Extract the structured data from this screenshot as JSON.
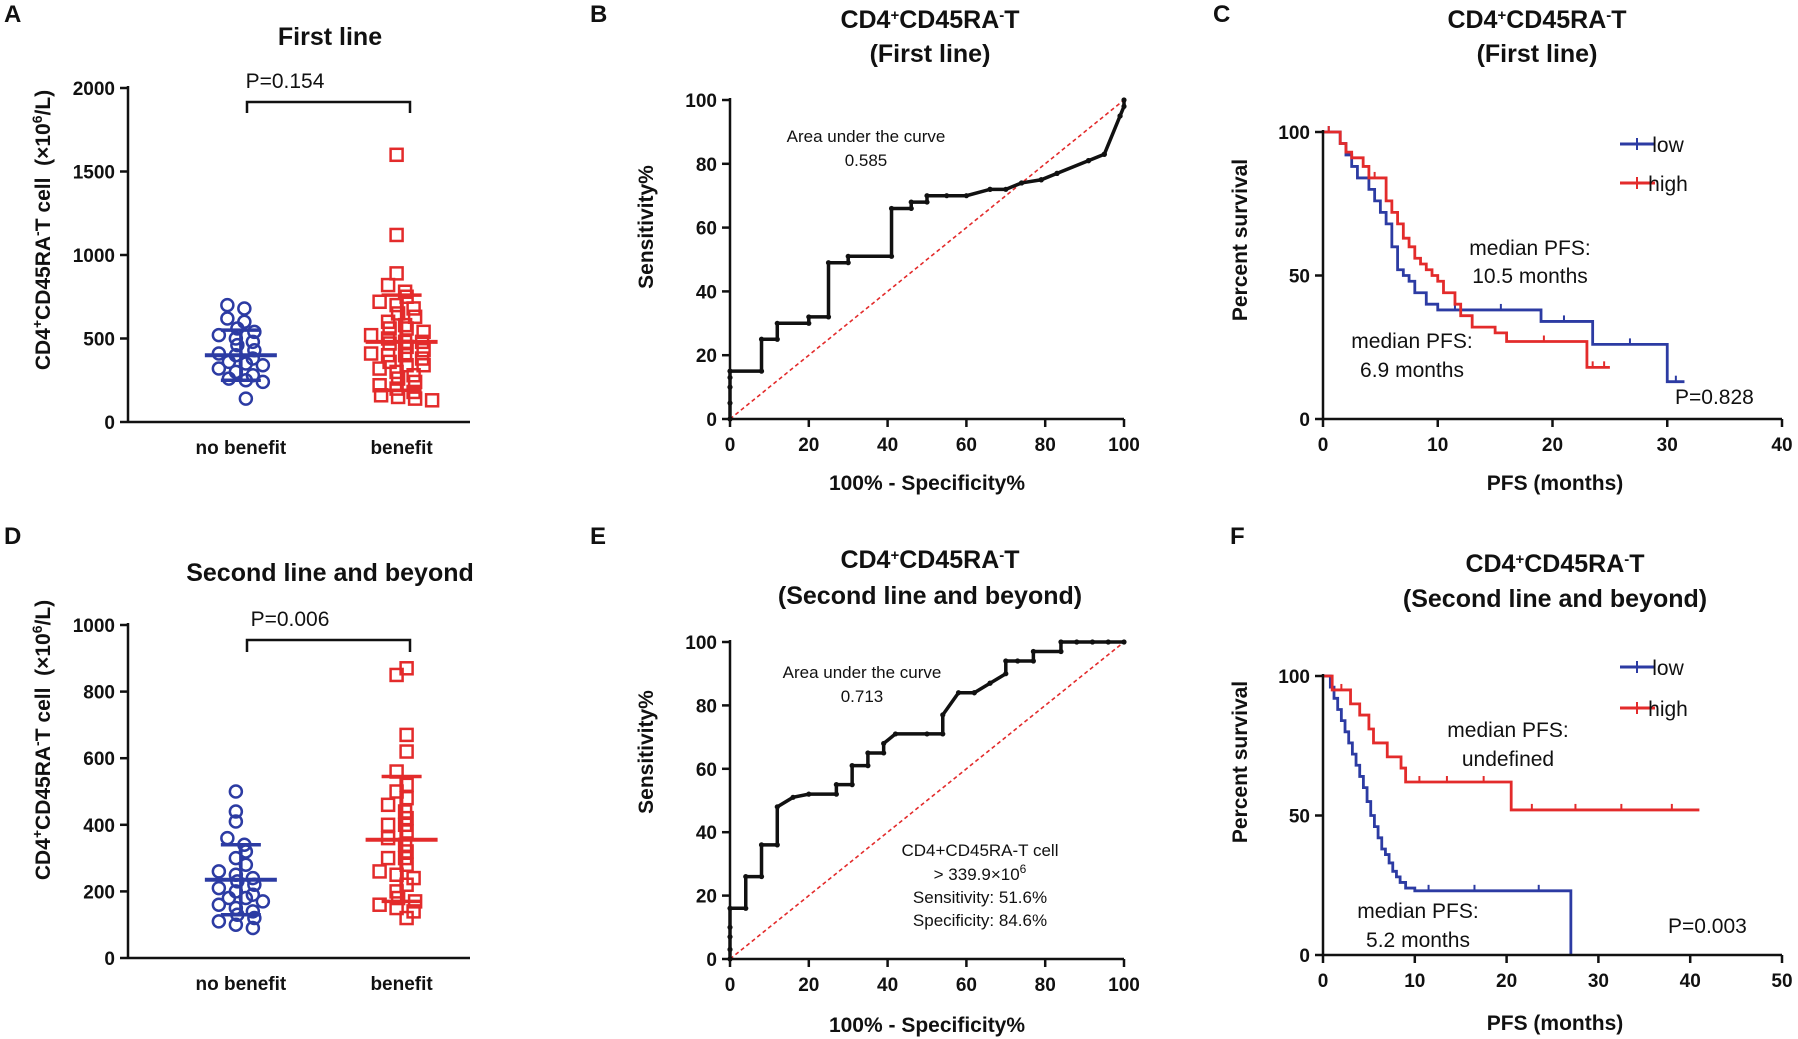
{
  "figure": {
    "panels": [
      {
        "letter": "A"
      },
      {
        "letter": "B"
      },
      {
        "letter": "C"
      },
      {
        "letter": "D"
      },
      {
        "letter": "E"
      },
      {
        "letter": "F"
      }
    ]
  },
  "colors": {
    "blue": "#2c3ba3",
    "red": "#e32b2b",
    "black": "#111111"
  },
  "chart_data": [
    {
      "type": "scatter",
      "panel": "A",
      "title": "First line",
      "ylabel": "CD4+CD45RA-T cell (×10^6/L)",
      "ylabel_parts": {
        "a": "CD4",
        "sup1": "+",
        "b": "CD45RA",
        "sup2": "-",
        "c": "T cell  (×10",
        "sup3": "6",
        "d": "/L)"
      },
      "ylim": [
        0,
        2000
      ],
      "yticks": [
        "0",
        "500",
        "1000",
        "1500",
        "2000"
      ],
      "categories": [
        "no benefit",
        "benefit"
      ],
      "p_value": "P=0.154",
      "groups": [
        {
          "name": "no benefit",
          "color": "#2c3ba3",
          "marker": "circle",
          "mean": 400,
          "sd_upper": 550,
          "sd_lower": 250,
          "points": [
            700,
            680,
            620,
            600,
            560,
            540,
            520,
            500,
            480,
            460,
            430,
            410,
            400,
            380,
            360,
            350,
            340,
            320,
            300,
            280,
            260,
            250,
            240,
            140
          ]
        },
        {
          "name": "benefit",
          "color": "#e32b2b",
          "marker": "square",
          "mean": 480,
          "sd_upper": 760,
          "sd_lower": 190,
          "points": [
            1600,
            1120,
            890,
            820,
            780,
            750,
            720,
            700,
            680,
            650,
            630,
            600,
            580,
            560,
            540,
            520,
            500,
            480,
            470,
            450,
            430,
            410,
            400,
            380,
            360,
            340,
            320,
            300,
            280,
            260,
            240,
            220,
            200,
            180,
            160,
            150,
            140,
            130,
            400,
            480,
            560,
            340
          ]
        }
      ]
    },
    {
      "type": "line",
      "panel": "B",
      "title_parts": {
        "a": "CD4",
        "sup1": "+",
        "b": "CD45RA",
        "sup2": "-",
        "c": "T"
      },
      "title_line2": "(First line)",
      "xlabel": "100% - Specificity%",
      "ylabel": "Sensitivity%",
      "xlim": [
        0,
        100
      ],
      "ylim": [
        0,
        100
      ],
      "xticks": [
        "0",
        "20",
        "40",
        "60",
        "80",
        "100"
      ],
      "yticks": [
        "0",
        "20",
        "40",
        "60",
        "80",
        "100"
      ],
      "auc_label": "Area under the curve",
      "auc_value": "0.585",
      "series": [
        {
          "name": "ROC",
          "color": "#111111",
          "x": [
            0,
            0,
            0,
            0,
            0,
            8,
            8,
            12,
            12,
            20,
            20,
            25,
            25,
            30,
            30,
            41,
            41,
            46,
            46,
            50,
            50,
            55,
            60,
            66,
            66,
            70,
            74,
            74,
            79,
            79,
            83,
            83,
            91,
            91,
            95,
            95,
            99,
            99,
            100,
            100
          ],
          "y": [
            0,
            5,
            10,
            13,
            15,
            15,
            25,
            25,
            30,
            30,
            32,
            32,
            49,
            49,
            51,
            51,
            66,
            66,
            68,
            68,
            70,
            70,
            70,
            72,
            72,
            72,
            74,
            74,
            75,
            75,
            77,
            77,
            81,
            81,
            83,
            83,
            95,
            95,
            98,
            100
          ]
        },
        {
          "name": "reference",
          "color": "#e32b2b",
          "x": [
            0,
            100
          ],
          "y": [
            0,
            100
          ]
        }
      ]
    },
    {
      "type": "line",
      "panel": "C",
      "title_parts": {
        "a": "CD4",
        "sup1": "+",
        "b": "CD45RA",
        "sup2": "-",
        "c": "T"
      },
      "title_line2": "(First line)",
      "xlabel": "PFS (months)",
      "ylabel": "Percent survival",
      "xlim": [
        0,
        40
      ],
      "ylim": [
        0,
        100
      ],
      "xticks": [
        "0",
        "10",
        "20",
        "30",
        "40"
      ],
      "yticks": [
        "0",
        "50",
        "100"
      ],
      "legend": [
        "low",
        "high"
      ],
      "p_value": "P=0.828",
      "annotations": [
        {
          "line1": "median PFS:",
          "line2": "10.5 months"
        },
        {
          "line1": "median PFS:",
          "line2": "6.9 months"
        }
      ],
      "series": [
        {
          "name": "low",
          "color": "#2c3ba3",
          "x": [
            0,
            1,
            1.5,
            2,
            2.5,
            3,
            3.5,
            4,
            4.5,
            5,
            5.5,
            6,
            6.5,
            7,
            7.5,
            8,
            9,
            10,
            13,
            18,
            19,
            23,
            23.5,
            30,
            30,
            31.5
          ],
          "y": [
            100,
            100,
            96,
            92,
            88,
            84,
            84,
            80,
            76,
            72,
            68,
            60,
            52,
            50,
            48,
            44,
            40,
            38,
            38,
            38,
            34,
            34,
            26,
            26,
            13,
            13
          ]
        },
        {
          "name": "high",
          "color": "#e32b2b",
          "x": [
            0,
            1,
            1.5,
            2,
            2.5,
            3.5,
            4,
            5,
            5.5,
            6,
            6.5,
            7,
            7.5,
            8,
            8.5,
            9,
            9.5,
            10,
            10.5,
            11.5,
            12,
            13,
            15,
            16,
            22.5,
            23,
            24,
            25
          ],
          "y": [
            100,
            100,
            96,
            93,
            91,
            88,
            84,
            84,
            76,
            72,
            68,
            63,
            60,
            56,
            54,
            52,
            50,
            48,
            44,
            40,
            36,
            32,
            30,
            27,
            27,
            18,
            18,
            18
          ]
        }
      ]
    },
    {
      "type": "scatter",
      "panel": "D",
      "title": "Second line and beyond",
      "ylabel_parts": {
        "a": "CD4",
        "sup1": "+",
        "b": "CD45RA",
        "sup2": "-",
        "c": "T cell  (×10",
        "sup3": "6",
        "d": "/L)"
      },
      "ylim": [
        0,
        1000
      ],
      "yticks": [
        "0",
        "200",
        "400",
        "600",
        "800",
        "1000"
      ],
      "categories": [
        "no benefit",
        "benefit"
      ],
      "p_value": "P=0.006",
      "groups": [
        {
          "name": "no benefit",
          "color": "#2c3ba3",
          "marker": "circle",
          "mean": 235,
          "sd_upper": 340,
          "sd_lower": 130,
          "points": [
            500,
            440,
            410,
            360,
            340,
            320,
            300,
            280,
            260,
            250,
            240,
            230,
            220,
            200,
            190,
            180,
            170,
            160,
            150,
            140,
            130,
            120,
            110,
            100,
            90,
            180,
            210
          ]
        },
        {
          "name": "benefit",
          "color": "#e32b2b",
          "marker": "square",
          "mean": 355,
          "sd_upper": 545,
          "sd_lower": 170,
          "points": [
            870,
            850,
            670,
            620,
            560,
            520,
            500,
            480,
            460,
            440,
            420,
            400,
            380,
            360,
            340,
            320,
            300,
            280,
            260,
            240,
            220,
            200,
            180,
            170,
            160,
            150,
            140,
            120,
            400,
            300,
            250
          ]
        }
      ]
    },
    {
      "type": "line",
      "panel": "E",
      "title_parts": {
        "a": "CD4",
        "sup1": "+",
        "b": "CD45RA",
        "sup2": "-",
        "c": "T"
      },
      "title_line2": "(Second line and beyond)",
      "xlabel": "100% - Specificity%",
      "ylabel": "Sensitivity%",
      "xlim": [
        0,
        100
      ],
      "ylim": [
        0,
        100
      ],
      "xticks": [
        "0",
        "20",
        "40",
        "60",
        "80",
        "100"
      ],
      "yticks": [
        "0",
        "20",
        "40",
        "60",
        "80",
        "100"
      ],
      "auc_label": "Area under the curve",
      "auc_value": "0.713",
      "cutoff": {
        "line1": "CD4+CD45RA-T cell",
        "line2": "> 339.9×10",
        "line2_sup": "6",
        "line3": "Sensitivity: 51.6%",
        "line4": "Specificity: 84.6%"
      },
      "series": [
        {
          "name": "ROC",
          "color": "#111111",
          "x": [
            0,
            0,
            0,
            0,
            0,
            4,
            4,
            8,
            8,
            12,
            12,
            16,
            20,
            27,
            27,
            31,
            31,
            35,
            35,
            39,
            39,
            42,
            50,
            54,
            54,
            58,
            62,
            62,
            66,
            66,
            70,
            70,
            73,
            77,
            77,
            84,
            84,
            88,
            92,
            96,
            100
          ],
          "y": [
            0,
            3,
            7,
            10,
            16,
            16,
            26,
            26,
            36,
            36,
            48,
            51,
            52,
            52,
            55,
            55,
            61,
            61,
            65,
            65,
            68,
            71,
            71,
            71,
            77,
            84,
            84,
            84,
            87,
            87,
            90,
            94,
            94,
            94,
            97,
            97,
            100,
            100,
            100,
            100,
            100
          ]
        },
        {
          "name": "reference",
          "color": "#e32b2b",
          "x": [
            0,
            100
          ],
          "y": [
            0,
            100
          ]
        }
      ]
    },
    {
      "type": "line",
      "panel": "F",
      "title_parts": {
        "a": "CD4",
        "sup1": "+",
        "b": "CD45RA",
        "sup2": "-",
        "c": "T"
      },
      "title_line2": "(Second line and beyond)",
      "xlabel": "PFS (months)",
      "ylabel": "Percent survival",
      "xlim": [
        0,
        50
      ],
      "ylim": [
        0,
        100
      ],
      "xticks": [
        "0",
        "10",
        "20",
        "30",
        "40",
        "50"
      ],
      "yticks": [
        "0",
        "50",
        "100"
      ],
      "legend": [
        "low",
        "high"
      ],
      "p_value": "P=0.003",
      "annotations": [
        {
          "line1": "median PFS:",
          "line2": "undefined"
        },
        {
          "line1": "median PFS:",
          "line2": "5.2 months"
        }
      ],
      "series": [
        {
          "name": "low",
          "color": "#2c3ba3",
          "x": [
            0,
            0.8,
            1.2,
            1.6,
            2,
            2.4,
            2.8,
            3.2,
            3.6,
            4,
            4.4,
            4.8,
            5.2,
            5.6,
            6,
            6.4,
            6.8,
            7.2,
            7.6,
            8,
            8.4,
            9,
            10,
            13,
            20,
            27,
            27
          ],
          "y": [
            100,
            96,
            92,
            88,
            84,
            80,
            76,
            72,
            68,
            64,
            60,
            55,
            50,
            46,
            42,
            38,
            36,
            33,
            30,
            28,
            26,
            24,
            23,
            23,
            23,
            23,
            0
          ]
        },
        {
          "name": "high",
          "color": "#e32b2b",
          "x": [
            0,
            1,
            3,
            3,
            4,
            5,
            5.5,
            6,
            7,
            7.5,
            8.5,
            9,
            12,
            15,
            20,
            20.5,
            25,
            30,
            35,
            41
          ],
          "y": [
            100,
            95,
            95,
            90,
            86,
            81,
            76,
            76,
            71,
            71,
            67,
            62,
            62,
            62,
            62,
            52,
            52,
            52,
            52,
            52
          ]
        }
      ]
    }
  ]
}
